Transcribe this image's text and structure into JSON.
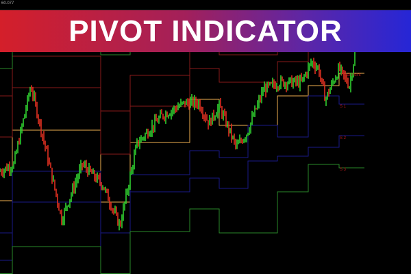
{
  "banner": {
    "title": "PIVOT INDICATOR"
  },
  "price_readout": "60.077",
  "chart_data": {
    "type": "candlestick",
    "title": "",
    "level_labels": {
      "pivot": "Pivot Point",
      "s1": "S 1",
      "s2": "S 2",
      "s3": "S 3"
    },
    "colors": {
      "pivot": "#f0b050",
      "resistance": "#8a1a1a",
      "support": "#1a1a8a",
      "outer": "#2a8a2a",
      "bull": "#30d030",
      "bear": "#e03020"
    },
    "periods": [
      {
        "pivot": 107,
        "r1": 200,
        "r2": 260,
        "r3": 300,
        "s1": 60,
        "s2": 20,
        "s3": -20
      },
      {
        "pivot": 210,
        "r1": 272,
        "r2": 318,
        "r3": 380,
        "s1": 150,
        "s2": 105,
        "s3": 40
      },
      {
        "pivot": 210,
        "r1": 272,
        "r2": 318,
        "r3": 380,
        "s1": 150,
        "s2": 105,
        "s3": 40
      },
      {
        "pivot": 105,
        "r1": 175,
        "r2": 238,
        "r3": 320,
        "s1": 60,
        "s2": 0,
        "s3": -40
      },
      {
        "pivot": 192,
        "r1": 245,
        "r2": 290,
        "r3": 380,
        "s1": 145,
        "s2": 120,
        "s3": 62
      },
      {
        "pivot": 192,
        "r1": 245,
        "r2": 290,
        "r3": 380,
        "s1": 145,
        "s2": 120,
        "s3": 62
      },
      {
        "pivot": 255,
        "r1": 300,
        "r2": 345,
        "r3": 385,
        "s1": 180,
        "s2": 140,
        "s3": 95
      },
      {
        "pivot": 217,
        "r1": 280,
        "r2": 320,
        "r3": 385,
        "s1": 170,
        "s2": 125,
        "s3": 60
      },
      {
        "pivot": 217,
        "r1": 280,
        "r2": 320,
        "r3": 385,
        "s1": 217,
        "s2": 165,
        "s3": 60
      },
      {
        "pivot": 260,
        "r1": 310,
        "r2": 360,
        "r3": 400,
        "s1": 200,
        "s2": 172,
        "s3": 120
      },
      {
        "pivot": 275,
        "r1": 332,
        "r2": 360,
        "r3": 400,
        "s1": 260,
        "s2": 185,
        "s3": 160
      },
      {
        "pivot": 293,
        "r1": 340,
        "r2": 380,
        "r3": 400,
        "s1": 248,
        "s2": 202,
        "s3": 155
      }
    ]
  }
}
